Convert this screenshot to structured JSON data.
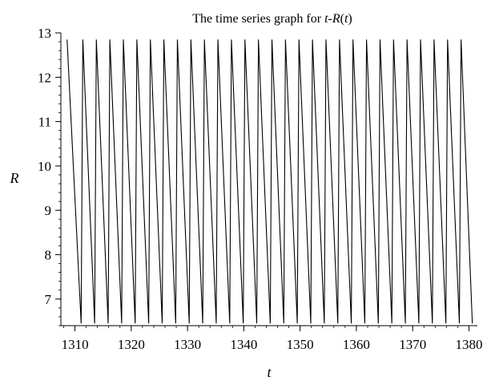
{
  "chart_data": {
    "type": "line",
    "title": {
      "prefix": "The time series graph for ",
      "var1": "t",
      "dash": "-",
      "var2": "R",
      "open": "(",
      "var3": "t",
      "close": ")"
    },
    "xlabel": "t",
    "ylabel": "R",
    "xlim": [
      1307.5,
      1381.5
    ],
    "ylim": [
      6.4,
      13.0
    ],
    "x_ticks": [
      1310,
      1320,
      1330,
      1340,
      1350,
      1360,
      1370,
      1380
    ],
    "y_ticks": [
      7,
      8,
      9,
      10,
      11,
      12,
      13
    ],
    "x_minor_step": 2,
    "y_minor_step": 0.2,
    "grid": false,
    "line_color": "#000000",
    "series": [
      {
        "x": [
          1308.6,
          1311.1,
          1311.4,
          1313.5,
          1313.8,
          1315.9,
          1316.2,
          1318.3,
          1318.6,
          1320.7,
          1321.0,
          1323.1,
          1323.4,
          1325.5,
          1325.8,
          1327.9,
          1328.2,
          1330.3,
          1330.6,
          1332.7,
          1333.0,
          1335.1,
          1335.4,
          1337.5,
          1337.8,
          1339.9,
          1340.2,
          1342.3,
          1342.6,
          1344.7,
          1345.0,
          1347.1,
          1347.4,
          1349.5,
          1349.8,
          1351.9,
          1352.2,
          1354.3,
          1354.6,
          1356.7,
          1357.0,
          1359.1,
          1359.4,
          1361.5,
          1361.8,
          1363.9,
          1364.2,
          1366.3,
          1366.6,
          1368.7,
          1369.0,
          1371.1,
          1371.4,
          1373.5,
          1373.8,
          1375.9,
          1376.2,
          1378.3,
          1378.6,
          1380.6
        ],
        "y": [
          12.85,
          6.45,
          12.85,
          6.45,
          12.85,
          6.45,
          12.85,
          6.45,
          12.85,
          6.45,
          12.85,
          6.45,
          12.85,
          6.45,
          12.85,
          6.45,
          12.85,
          6.45,
          12.85,
          6.45,
          12.85,
          6.45,
          12.85,
          6.45,
          12.85,
          6.45,
          12.85,
          6.45,
          12.85,
          6.45,
          12.85,
          6.45,
          12.85,
          6.45,
          12.85,
          6.45,
          12.85,
          6.45,
          12.85,
          6.45,
          12.85,
          6.45,
          12.85,
          6.45,
          12.85,
          6.45,
          12.85,
          6.45,
          12.85,
          6.45,
          12.85,
          6.45,
          12.85,
          6.45,
          12.85,
          6.45,
          12.85,
          6.45,
          12.85,
          6.45
        ]
      }
    ]
  }
}
